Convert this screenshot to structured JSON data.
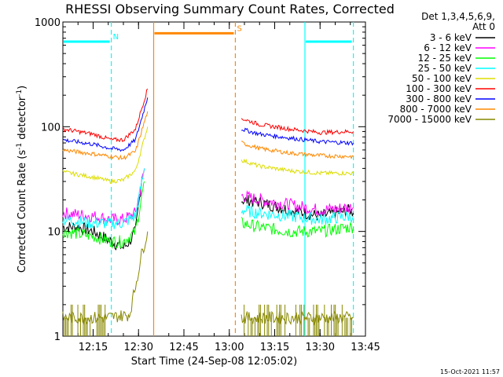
{
  "chart_data": {
    "type": "line",
    "title": "RHESSI Observing Summary Count Rates, Corrected",
    "xlabel": "Start Time (24-Sep-08 12:05:02)",
    "ylabel_main": "Corrected Count Rate (s",
    "ylabel_sup1": "-1",
    "ylabel_mid": " detector",
    "ylabel_sup2": "-1",
    "ylabel_end": ")",
    "yscale": "log",
    "ylim": [
      1,
      1000
    ],
    "xlim_minutes": [
      0,
      100
    ],
    "y_ticks": [
      {
        "value": 1,
        "label": "1"
      },
      {
        "value": 10,
        "label": "10"
      },
      {
        "value": 100,
        "label": "100"
      },
      {
        "value": 1000,
        "label": "1000"
      }
    ],
    "x_ticks": [
      {
        "minute": 10,
        "label": "12:15"
      },
      {
        "minute": 25,
        "label": "12:30"
      },
      {
        "minute": 40,
        "label": "12:45"
      },
      {
        "minute": 55,
        "label": "13:00"
      },
      {
        "minute": 70,
        "label": "13:15"
      },
      {
        "minute": 85,
        "label": "13:30"
      },
      {
        "minute": 100,
        "label": "13:45"
      }
    ],
    "legend": {
      "header1": "Det 1,3,4,5,6,9,",
      "header2": "Att 0",
      "placement": "right"
    },
    "series": [
      {
        "name": "3 - 6 keV",
        "color": "#000000",
        "segments": [
          {
            "x": [
              0,
              5,
              10,
              16,
              20,
              22,
              24,
              26
            ],
            "y": [
              11,
              11,
              10,
              8,
              7,
              8,
              10,
              30
            ]
          },
          {
            "x": [
              59,
              65,
              75,
              85,
              95,
              96
            ],
            "y": [
              20,
              19,
              16,
              14,
              16,
              15
            ]
          }
        ]
      },
      {
        "name": "6 - 12 keV",
        "color": "#ff00ff",
        "segments": [
          {
            "x": [
              0,
              10,
              16,
              20,
              24,
              27
            ],
            "y": [
              15,
              14,
              13,
              13,
              15,
              40
            ]
          },
          {
            "x": [
              59,
              65,
              75,
              85,
              95,
              96
            ],
            "y": [
              22,
              20,
              18,
              16,
              17,
              17
            ]
          }
        ]
      },
      {
        "name": "12 - 25 keV",
        "color": "#00ff00",
        "segments": [
          {
            "x": [
              0,
              10,
              16,
              20,
              24,
              27
            ],
            "y": [
              10,
              9,
              8,
              8,
              10,
              30
            ]
          },
          {
            "x": [
              59,
              65,
              75,
              85,
              95,
              96
            ],
            "y": [
              12,
              11,
              10,
              10,
              11,
              11
            ]
          }
        ]
      },
      {
        "name": "25 - 50 keV",
        "color": "#00ffff",
        "segments": [
          {
            "x": [
              0,
              10,
              16,
              20,
              24,
              27
            ],
            "y": [
              13,
              12,
              12,
              12,
              14,
              40
            ]
          },
          {
            "x": [
              59,
              65,
              75,
              85,
              95,
              96
            ],
            "y": [
              16,
              15,
              14,
              13,
              14,
              14
            ]
          }
        ]
      },
      {
        "name": "50 - 100 keV",
        "color": "#dddd00",
        "segments": [
          {
            "x": [
              0,
              10,
              16,
              20,
              24,
              28
            ],
            "y": [
              37,
              33,
              30,
              31,
              38,
              100
            ]
          },
          {
            "x": [
              59,
              65,
              75,
              85,
              95,
              96
            ],
            "y": [
              48,
              42,
              38,
              36,
              36,
              36
            ]
          }
        ]
      },
      {
        "name": "100 - 300 keV",
        "color": "#ff0000",
        "segments": [
          {
            "x": [
              0,
              10,
              16,
              20,
              24,
              28
            ],
            "y": [
              95,
              85,
              75,
              75,
              95,
              230
            ]
          },
          {
            "x": [
              59,
              65,
              75,
              85,
              95,
              96
            ],
            "y": [
              120,
              105,
              95,
              88,
              90,
              90
            ]
          }
        ]
      },
      {
        "name": "300 - 800 keV",
        "color": "#0000ff",
        "segments": [
          {
            "x": [
              0,
              10,
              16,
              20,
              24,
              28
            ],
            "y": [
              75,
              68,
              62,
              60,
              75,
              190
            ]
          },
          {
            "x": [
              59,
              65,
              75,
              85,
              95,
              96
            ],
            "y": [
              95,
              85,
              78,
              72,
              70,
              70
            ]
          }
        ]
      },
      {
        "name": "800 - 7000 keV",
        "color": "#ff8800",
        "segments": [
          {
            "x": [
              0,
              10,
              16,
              20,
              24,
              28
            ],
            "y": [
              60,
              55,
              52,
              50,
              58,
              140
            ]
          },
          {
            "x": [
              59,
              65,
              75,
              85,
              95,
              96
            ],
            "y": [
              70,
              62,
              56,
              53,
              52,
              52
            ]
          }
        ]
      },
      {
        "name": "7000 - 15000 keV",
        "color": "#888800",
        "segments": [
          {
            "x": [
              0,
              14,
              22,
              24,
              26,
              28
            ],
            "y": [
              1.5,
              1.5,
              1.6,
              3,
              6,
              10
            ]
          },
          {
            "x": [
              59,
              70,
              85,
              96
            ],
            "y": [
              1.5,
              1.5,
              1.5,
              1.5
            ]
          }
        ]
      }
    ],
    "flags": [
      {
        "label": "N",
        "color": "#00ffff",
        "start": 0,
        "end": 16,
        "level": 650
      },
      {
        "label": "",
        "color": "#00ffff",
        "start": 80,
        "end": 96,
        "level": 650
      },
      {
        "label": "S",
        "color": "#ff8800",
        "start": 30,
        "end": 57,
        "level": 780
      }
    ],
    "vlines": [
      {
        "minute": 16,
        "color": "#00ffff",
        "dashed": true
      },
      {
        "minute": 30,
        "color": "#ff8800",
        "dashed": false
      },
      {
        "minute": 57,
        "color": "#ff8800",
        "dashed": true
      },
      {
        "minute": 80,
        "color": "#00ffff",
        "dashed": false
      },
      {
        "minute": 96,
        "color": "#00ffff",
        "dashed": true
      }
    ]
  },
  "footer": {
    "timestamp": "15-Oct-2021 11:57"
  }
}
